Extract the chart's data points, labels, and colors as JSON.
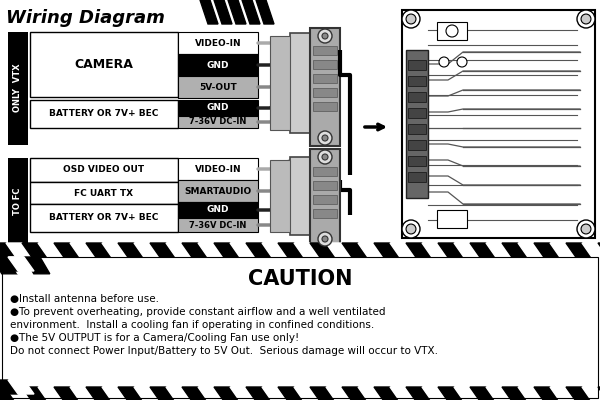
{
  "title": "Wiring Diagram",
  "bg_color": "#ffffff",
  "section1_label": "ONLY  VTX",
  "section2_label": "TO FC",
  "cam_label": "CAMERA",
  "bat1_label": "BATTERY OR 7V+ BEC",
  "osd_label": "OSD VIDEO OUT",
  "fc_label": "FC UART TX",
  "bat2_label": "BATTERY OR 7V+ BEC",
  "caution_title": "CAUTION",
  "caution_line1": "●Install antenna before use.",
  "caution_line2": "●To prevent overheating, provide constant airflow and a well ventilated",
  "caution_line3": "environment.  Install a cooling fan if operating in confined conditions.",
  "caution_line4": "●The 5V OUTPUT is for a Camera/Cooling Fan use only!",
  "caution_line5": "Do not connect Power Input/Battery to 5V Out.  Serious damage will occur to VTX."
}
